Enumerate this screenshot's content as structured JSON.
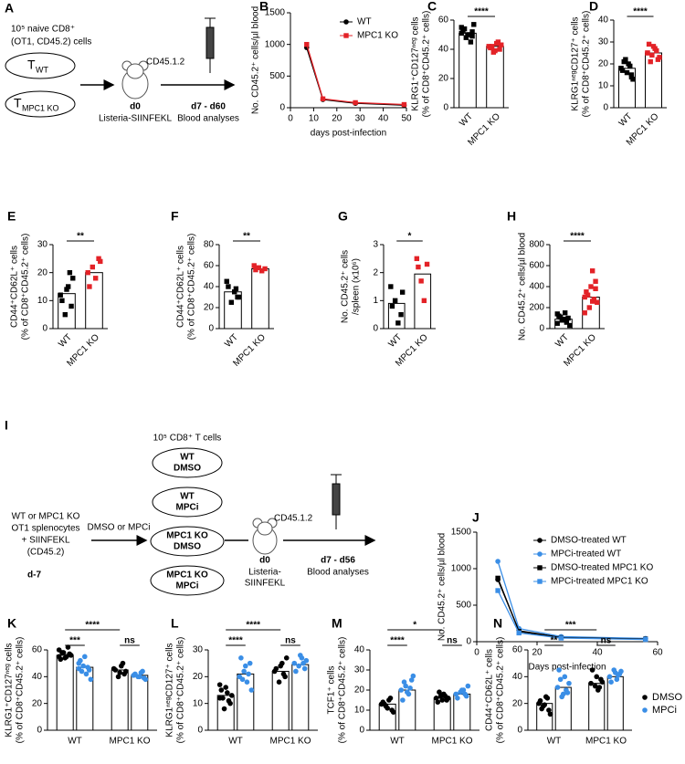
{
  "schemes": {
    "A": {
      "panel": "A",
      "header": [
        "10⁵ naive CD8⁺",
        "(OT1, CD45.2) cells"
      ],
      "groups": [
        {
          "main": "T",
          "sub": "WT"
        },
        {
          "main": "T",
          "sub": "MPC1 KO"
        }
      ],
      "host": "CD45.1.2",
      "day0": "d0",
      "infection": "Listeria-SIINFEKL",
      "days": "d7 - d60",
      "readout": "Blood analyses"
    },
    "I": {
      "panel": "I",
      "donor": [
        "WT or MPC1 KO",
        "OT1 splenocytes",
        "+ SIINFEKL",
        "(CD45.2)"
      ],
      "day": "d-7",
      "treatment": "DMSO or MPCi",
      "header": "10⁵ CD8⁺ T cells",
      "groups": [
        [
          "WT",
          "DMSO"
        ],
        [
          "WT",
          "MPCi"
        ],
        [
          "MPC1 KO",
          "DMSO"
        ],
        [
          "MPC1 KO",
          "MPCi"
        ]
      ],
      "host": "CD45.1.2",
      "day0": "d0",
      "infection": [
        "Listeria-",
        "SIINFEKL"
      ],
      "days": "d7 - d56",
      "readout": "Blood analyses"
    }
  },
  "chart_data": [
    {
      "type": "line",
      "panel": "B",
      "y_label": [
        "No. CD45.2⁺ cells/µl blood"
      ],
      "x_label": "days post-infection",
      "x": [
        7,
        14,
        28,
        49
      ],
      "xlim": [
        0,
        50
      ],
      "xticks": [
        0,
        10,
        20,
        30,
        40,
        50
      ],
      "ylim": [
        0,
        1500
      ],
      "yticks": [
        0,
        500,
        1000,
        1500
      ],
      "legend": "upper right",
      "series": [
        {
          "name": "WT",
          "color": "#000000",
          "marker": "circle",
          "values": [
            950,
            130,
            70,
            40
          ]
        },
        {
          "name": "MPC1 KO",
          "color": "#e32227",
          "marker": "square",
          "values": [
            1000,
            140,
            80,
            50
          ]
        }
      ]
    },
    {
      "type": "bar",
      "panel": "C",
      "y_label": [
        "KLRG1⁺CD127ⁿᵉᵍ cells",
        "(% of CD8⁺CD45.2⁺ cells)"
      ],
      "categories": [
        "WT",
        "MPC1 KO"
      ],
      "colors": [
        "#000000",
        "#e32227"
      ],
      "values": [
        51,
        42
      ],
      "points": [
        [
          55,
          52,
          50,
          48,
          53,
          57,
          45,
          50,
          54,
          51,
          49
        ],
        [
          42,
          40,
          44,
          38,
          41,
          43,
          45,
          39,
          42
        ]
      ],
      "significance": "****",
      "ylim": [
        0,
        60
      ],
      "yticks": [
        0,
        20,
        40,
        60
      ]
    },
    {
      "type": "bar",
      "panel": "D",
      "y_label": [
        "KLRG1ⁿᵉᵍCD127⁺ cells",
        "(% of CD8⁺CD45.2⁺ cells)"
      ],
      "categories": [
        "WT",
        "MPC1 KO"
      ],
      "colors": [
        "#000000",
        "#e32227"
      ],
      "values": [
        18,
        25
      ],
      "points": [
        [
          18,
          15,
          20,
          22,
          17,
          13,
          19,
          16,
          21,
          18,
          14
        ],
        [
          25,
          22,
          27,
          24,
          29,
          23,
          26,
          28,
          21,
          25
        ]
      ],
      "significance": "****",
      "ylim": [
        0,
        40
      ],
      "yticks": [
        0,
        10,
        20,
        30,
        40
      ]
    },
    {
      "type": "bar",
      "panel": "E",
      "y_label": [
        "CD44⁺CD62L⁺ cells",
        "(% of CD8⁺CD45.2⁺ cells)"
      ],
      "categories": [
        "WT",
        "MPC1 KO"
      ],
      "colors": [
        "#000000",
        "#e32227"
      ],
      "values": [
        12.5,
        20
      ],
      "points": [
        [
          12,
          8,
          15,
          5,
          10,
          18,
          20,
          14
        ],
        [
          20,
          25,
          18,
          22,
          15,
          24
        ]
      ],
      "significance": "**",
      "ylim": [
        0,
        30
      ],
      "yticks": [
        0,
        10,
        20,
        30
      ]
    },
    {
      "type": "bar",
      "panel": "F",
      "y_label": [
        "CD44⁺CD62L⁺ cells",
        "(% of CD8⁺CD45.2⁺ cells)"
      ],
      "categories": [
        "WT",
        "MPC1 KO"
      ],
      "colors": [
        "#000000",
        "#e32227"
      ],
      "values": [
        35,
        57
      ],
      "points": [
        [
          45,
          30,
          35,
          25,
          40,
          30,
          38
        ],
        [
          60,
          57,
          55,
          58,
          56
        ]
      ],
      "significance": "**",
      "ylim": [
        0,
        80
      ],
      "yticks": [
        0,
        20,
        40,
        60,
        80
      ]
    },
    {
      "type": "bar",
      "panel": "G",
      "y_label": [
        "No. CD45.2⁺ cells",
        "/spleen (x10⁶)"
      ],
      "categories": [
        "WT",
        "MPC1 KO"
      ],
      "colors": [
        "#000000",
        "#e32227"
      ],
      "values": [
        0.9,
        1.95
      ],
      "points": [
        [
          1.5,
          0.5,
          0.2,
          1.0,
          0.8,
          1.3
        ],
        [
          2.5,
          2.3,
          1.0,
          1.7,
          2.2
        ]
      ],
      "significance": "*",
      "ylim": [
        0,
        3
      ],
      "yticks": [
        0,
        1,
        2,
        3
      ]
    },
    {
      "type": "bar",
      "panel": "H",
      "y_label": [
        "No. CD45.2⁺ cells/µl blood"
      ],
      "categories": [
        "WT",
        "MPC1 KO"
      ],
      "colors": [
        "#000000",
        "#e32227"
      ],
      "values": [
        90,
        300
      ],
      "points": [
        [
          50,
          100,
          150,
          80,
          120,
          30,
          60,
          90,
          110,
          140
        ],
        [
          300,
          450,
          550,
          200,
          350,
          250,
          280,
          400,
          320,
          150,
          380,
          260
        ]
      ],
      "significance": "****",
      "ylim": [
        0,
        800
      ],
      "yticks": [
        0,
        200,
        400,
        600,
        800
      ]
    },
    {
      "type": "line",
      "panel": "J",
      "y_label": [
        "No. CD45.2⁺ cells/µl blood"
      ],
      "x_label": "Days post-infection",
      "x": [
        7,
        14,
        28,
        56
      ],
      "xlim": [
        0,
        60
      ],
      "xticks": [
        0,
        20,
        40,
        60
      ],
      "ylim": [
        0,
        1500
      ],
      "yticks": [
        0,
        500,
        1000,
        1500
      ],
      "legend": "upper right",
      "series": [
        {
          "name": "DMSO-treated WT",
          "color": "#000000",
          "marker": "circle",
          "values": [
            850,
            150,
            60,
            40
          ]
        },
        {
          "name": "MPCi-treated WT",
          "color": "#3a8ee6",
          "marker": "circle",
          "values": [
            1100,
            180,
            70,
            45
          ]
        },
        {
          "name": "DMSO-treated MPC1 KO",
          "color": "#000000",
          "marker": "square",
          "values": [
            870,
            140,
            55,
            35
          ]
        },
        {
          "name": "MPCi-treated MPC1 KO",
          "color": "#3a8ee6",
          "marker": "square",
          "values": [
            700,
            120,
            50,
            30
          ]
        }
      ]
    },
    {
      "type": "grouped_bar",
      "panel": "K",
      "y_label": [
        "KLRG1⁺CD127ⁿᵉᵍ cells",
        "(% of CD8⁺CD45.2⁺ cells)"
      ],
      "categories": [
        "WT",
        "MPC1 KO"
      ],
      "ylim": [
        0,
        60
      ],
      "yticks": [
        0,
        20,
        40,
        60
      ],
      "significance": [
        "****",
        "***",
        "ns"
      ],
      "legend": false,
      "series": [
        {
          "name": "DMSO",
          "color": "#000000",
          "values": [
            56,
            45
          ],
          "points": [
            [
              60,
              57,
              55,
              58,
              53,
              56,
              62,
              54,
              58,
              55
            ],
            [
              46,
              42,
              48,
              40,
              45,
              44,
              50,
              43
            ]
          ]
        },
        {
          "name": "MPCi",
          "color": "#3a8ee6",
          "values": [
            47,
            41
          ],
          "points": [
            [
              50,
              45,
              42,
              48,
              52,
              38,
              47,
              55,
              44,
              46
            ],
            [
              41,
              39,
              43,
              40,
              42,
              38,
              44,
              40
            ]
          ]
        }
      ]
    },
    {
      "type": "grouped_bar",
      "panel": "L",
      "y_label": [
        "KLRG1ⁿᵉᵍCD127⁺ cells",
        "(% of CD8⁺CD45.2⁺ cells)"
      ],
      "categories": [
        "WT",
        "MPC1 KO"
      ],
      "ylim": [
        0,
        30
      ],
      "yticks": [
        0,
        10,
        20,
        30
      ],
      "significance": [
        "****",
        "****",
        "ns"
      ],
      "legend": false,
      "series": [
        {
          "name": "DMSO",
          "color": "#000000",
          "values": [
            13,
            22
          ],
          "points": [
            [
              12,
              10,
              14,
              8,
              15,
              13,
              11,
              16,
              12,
              17
            ],
            [
              22,
              20,
              25,
              18,
              23,
              27,
              21,
              24
            ]
          ]
        },
        {
          "name": "MPCi",
          "color": "#3a8ee6",
          "values": [
            21,
            24.5
          ],
          "points": [
            [
              20,
              25,
              18,
              22,
              27,
              15,
              21,
              24,
              19
            ],
            [
              25,
              23,
              27,
              24,
              22,
              26,
              25,
              28
            ]
          ]
        }
      ]
    },
    {
      "type": "grouped_bar",
      "panel": "M",
      "y_label": [
        "TCF1⁺ cells",
        "(% of CD8⁺CD45.2⁺ cells)"
      ],
      "categories": [
        "WT",
        "MPC1 KO"
      ],
      "ylim": [
        0,
        40
      ],
      "yticks": [
        0,
        10,
        20,
        30,
        40
      ],
      "significance": [
        "*",
        "****",
        "ns"
      ],
      "legend": false,
      "series": [
        {
          "name": "DMSO",
          "color": "#000000",
          "values": [
            13,
            16
          ],
          "points": [
            [
              13,
              10,
              15,
              12,
              14,
              9,
              16,
              11,
              13
            ],
            [
              16,
              15,
              18,
              17,
              14,
              16,
              17,
              15,
              19
            ]
          ]
        },
        {
          "name": "MPCi",
          "color": "#3a8ee6",
          "values": [
            20,
            18
          ],
          "points": [
            [
              20,
              25,
              18,
              22,
              15,
              27,
              21,
              19,
              24
            ],
            [
              18,
              17,
              20,
              19,
              16,
              22,
              18,
              20
            ]
          ]
        }
      ]
    },
    {
      "type": "grouped_bar",
      "panel": "N",
      "y_label": [
        "CD44⁺CD62L⁺ cells",
        "(% of CD8⁺CD45.2⁺ cells)"
      ],
      "categories": [
        "WT",
        "MPC1 KO"
      ],
      "ylim": [
        0,
        60
      ],
      "yticks": [
        0,
        20,
        40,
        60
      ],
      "significance": [
        "***",
        "**",
        "ns"
      ],
      "legend": true,
      "series": [
        {
          "name": "DMSO",
          "color": "#000000",
          "values": [
            20,
            35
          ],
          "points": [
            [
              20,
              15,
              25,
              18,
              22,
              12,
              24,
              19,
              16
            ],
            [
              35,
              38,
              30,
              33,
              45,
              36,
              32,
              40
            ]
          ]
        },
        {
          "name": "MPCi",
          "color": "#3a8ee6",
          "values": [
            32,
            40
          ],
          "points": [
            [
              32,
              28,
              40,
              25,
              45,
              35,
              30,
              27,
              38
            ],
            [
              40,
              42,
              38,
              45,
              36,
              44,
              41,
              43
            ]
          ]
        }
      ]
    }
  ]
}
